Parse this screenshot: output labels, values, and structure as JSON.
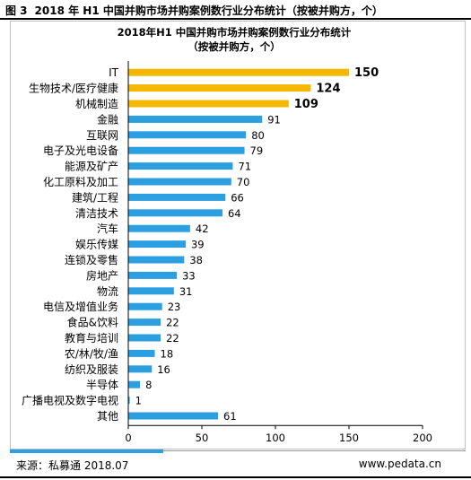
{
  "figure": {
    "number": "图 3",
    "caption": "2018 年 H1 中国并购市场并购案例数行业分布统计（按被并购方，个）"
  },
  "footer": {
    "source": "来源：私募通 2018.07",
    "site": "www.pedata.cn"
  },
  "colors": {
    "highlight": "#f5b800",
    "normal": "#2b9fe0",
    "axis": "#000000",
    "text": "#000000"
  },
  "chart_data": {
    "type": "bar",
    "orientation": "horizontal",
    "title": "2018年H1 中国并购市场并购案例数行业分布统计",
    "subtitle": "（按被并购方，个）",
    "xlim": [
      0,
      200
    ],
    "xticks": [
      0,
      50,
      100,
      150,
      200
    ],
    "grid": false,
    "categories": [
      "IT",
      "生物技术/医疗健康",
      "机械制造",
      "金融",
      "互联网",
      "电子及光电设备",
      "能源及矿产",
      "化工原料及加工",
      "建筑/工程",
      "清洁技术",
      "汽车",
      "娱乐传媒",
      "连锁及零售",
      "房地产",
      "物流",
      "电信及增值业务",
      "食品&饮料",
      "教育与培训",
      "农/林/牧/渔",
      "纺织及服装",
      "半导体",
      "广播电视及数字电视",
      "其他"
    ],
    "values": [
      150,
      124,
      109,
      91,
      80,
      79,
      71,
      70,
      66,
      64,
      42,
      39,
      38,
      33,
      31,
      23,
      22,
      22,
      18,
      16,
      8,
      1,
      61
    ],
    "highlighted_categories": [
      "IT",
      "生物技术/医疗健康",
      "机械制造"
    ]
  }
}
